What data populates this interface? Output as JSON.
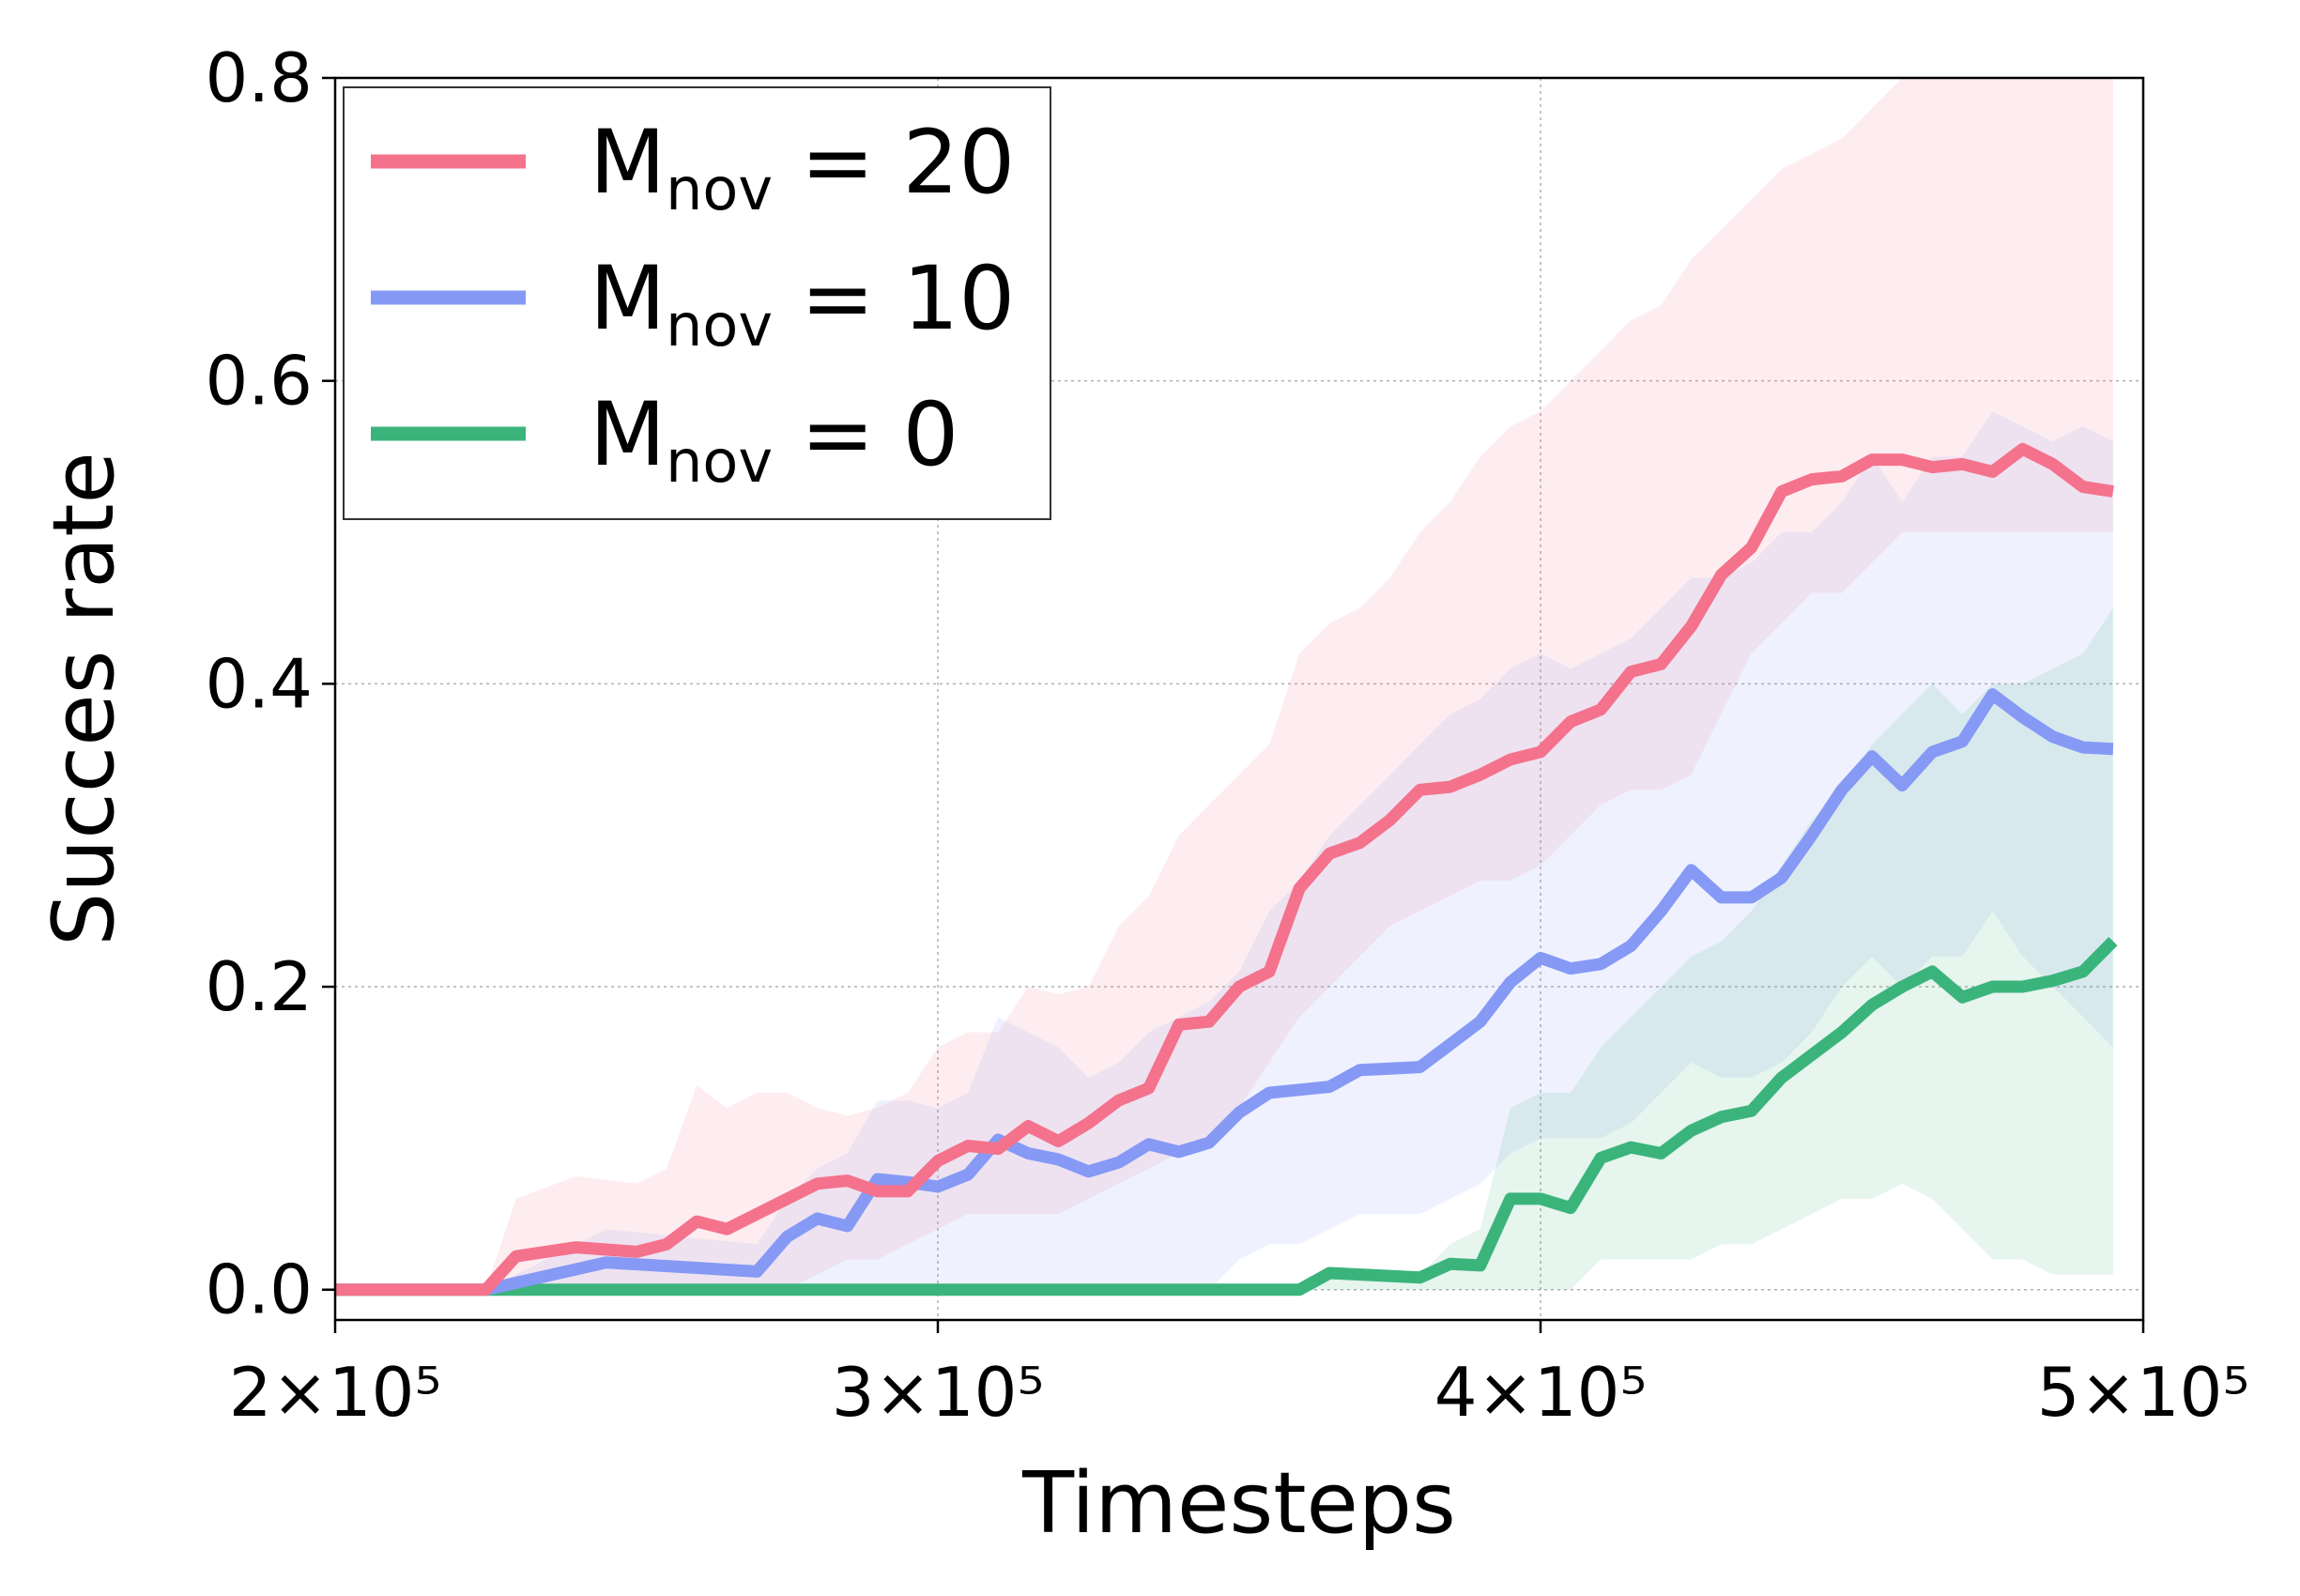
{
  "chart_data": {
    "type": "line",
    "title": "",
    "xlabel": "Timesteps",
    "ylabel": "Succes rate",
    "xlim": [
      200000,
      500000
    ],
    "ylim": [
      -0.02,
      0.8
    ],
    "x_ticks": [
      {
        "value": 200000,
        "label": "2×10⁵"
      },
      {
        "value": 300000,
        "label": "3×10⁵"
      },
      {
        "value": 400000,
        "label": "4×10⁵"
      },
      {
        "value": 500000,
        "label": "5×10⁵"
      }
    ],
    "y_ticks": [
      {
        "value": 0.0,
        "label": "0.0"
      },
      {
        "value": 0.2,
        "label": "0.2"
      },
      {
        "value": 0.4,
        "label": "0.4"
      },
      {
        "value": 0.6,
        "label": "0.6"
      },
      {
        "value": 0.8,
        "label": "0.8"
      }
    ],
    "grid": true,
    "legend_position": "top-left",
    "series": [
      {
        "name": "M_nov = 20",
        "legend_main": "M",
        "legend_sub": "nov",
        "legend_value": " = 20",
        "color": "#f4728c",
        "x": [
          200000,
          225000,
          230000,
          240000,
          250000,
          255000,
          260000,
          265000,
          270000,
          275000,
          280000,
          285000,
          290000,
          295000,
          300000,
          305000,
          310000,
          315000,
          320000,
          325000,
          330000,
          335000,
          340000,
          345000,
          350000,
          355000,
          360000,
          365000,
          370000,
          375000,
          380000,
          385000,
          390000,
          395000,
          400000,
          405000,
          410000,
          415000,
          420000,
          425000,
          430000,
          435000,
          440000,
          445000,
          450000,
          455000,
          460000,
          465000,
          470000,
          475000,
          480000,
          485000,
          490000,
          495000
        ],
        "y": [
          0.0,
          0.0,
          0.022,
          0.028,
          0.025,
          0.03,
          0.045,
          0.04,
          0.05,
          0.06,
          0.07,
          0.072,
          0.065,
          0.065,
          0.085,
          0.095,
          0.093,
          0.108,
          0.098,
          0.11,
          0.125,
          0.133,
          0.175,
          0.177,
          0.2,
          0.21,
          0.265,
          0.288,
          0.295,
          0.31,
          0.33,
          0.332,
          0.34,
          0.35,
          0.355,
          0.375,
          0.383,
          0.408,
          0.413,
          0.438,
          0.472,
          0.49,
          0.527,
          0.535,
          0.537,
          0.548,
          0.548,
          0.543,
          0.545,
          0.54,
          0.555,
          0.545,
          0.53,
          0.527
        ],
        "band_upper": [
          0.0,
          0.0,
          0.06,
          0.075,
          0.07,
          0.08,
          0.135,
          0.12,
          0.13,
          0.13,
          0.12,
          0.115,
          0.12,
          0.13,
          0.16,
          0.17,
          0.17,
          0.2,
          0.195,
          0.2,
          0.24,
          0.26,
          0.3,
          0.32,
          0.34,
          0.36,
          0.42,
          0.44,
          0.45,
          0.47,
          0.5,
          0.52,
          0.55,
          0.57,
          0.58,
          0.6,
          0.62,
          0.64,
          0.65,
          0.68,
          0.7,
          0.72,
          0.74,
          0.75,
          0.76,
          0.78,
          0.8,
          0.8,
          0.8,
          0.8,
          0.8,
          0.8,
          0.8,
          0.8
        ],
        "band_lower": [
          0.0,
          0.0,
          0.0,
          0.0,
          0.0,
          0.0,
          0.0,
          0.0,
          0.0,
          0.0,
          0.01,
          0.02,
          0.02,
          0.03,
          0.04,
          0.05,
          0.05,
          0.05,
          0.05,
          0.06,
          0.07,
          0.08,
          0.09,
          0.1,
          0.12,
          0.15,
          0.18,
          0.2,
          0.22,
          0.24,
          0.25,
          0.26,
          0.27,
          0.27,
          0.28,
          0.3,
          0.32,
          0.33,
          0.33,
          0.34,
          0.38,
          0.42,
          0.44,
          0.46,
          0.46,
          0.48,
          0.5,
          0.5,
          0.5,
          0.5,
          0.5,
          0.5,
          0.5,
          0.5
        ]
      },
      {
        "name": "M_nov = 10",
        "legend_main": "M",
        "legend_sub": "nov",
        "legend_value": " = 10",
        "color": "#8599f5",
        "x": [
          200000,
          225000,
          245000,
          270000,
          275000,
          280000,
          285000,
          290000,
          295000,
          300000,
          305000,
          310000,
          315000,
          320000,
          325000,
          330000,
          335000,
          340000,
          345000,
          350000,
          355000,
          360000,
          365000,
          370000,
          375000,
          380000,
          385000,
          390000,
          395000,
          400000,
          405000,
          410000,
          415000,
          420000,
          425000,
          430000,
          435000,
          440000,
          445000,
          450000,
          455000,
          460000,
          465000,
          470000,
          475000,
          480000,
          485000,
          490000,
          495000
        ],
        "y": [
          0.0,
          0.0,
          0.018,
          0.012,
          0.035,
          0.047,
          0.042,
          0.073,
          0.071,
          0.068,
          0.076,
          0.099,
          0.09,
          0.086,
          0.078,
          0.084,
          0.096,
          0.091,
          0.097,
          0.117,
          0.13,
          0.132,
          0.134,
          0.145,
          0.146,
          0.147,
          0.162,
          0.177,
          0.203,
          0.219,
          0.212,
          0.215,
          0.227,
          0.25,
          0.277,
          0.259,
          0.259,
          0.272,
          0.3,
          0.33,
          0.352,
          0.333,
          0.355,
          0.362,
          0.393,
          0.378,
          0.365,
          0.358,
          0.357
        ],
        "band_upper": [
          0.0,
          0.0,
          0.04,
          0.03,
          0.06,
          0.08,
          0.09,
          0.125,
          0.125,
          0.12,
          0.13,
          0.18,
          0.17,
          0.16,
          0.14,
          0.15,
          0.17,
          0.18,
          0.19,
          0.21,
          0.25,
          0.27,
          0.3,
          0.32,
          0.34,
          0.36,
          0.38,
          0.39,
          0.41,
          0.42,
          0.41,
          0.42,
          0.43,
          0.45,
          0.47,
          0.47,
          0.48,
          0.5,
          0.5,
          0.52,
          0.55,
          0.52,
          0.55,
          0.55,
          0.58,
          0.57,
          0.56,
          0.57,
          0.56
        ],
        "band_lower": [
          0.0,
          0.0,
          0.0,
          0.0,
          0.0,
          0.0,
          0.0,
          0.0,
          0.0,
          0.0,
          0.0,
          0.0,
          0.0,
          0.0,
          0.0,
          0.0,
          0.0,
          0.0,
          0.0,
          0.02,
          0.03,
          0.03,
          0.04,
          0.05,
          0.05,
          0.05,
          0.06,
          0.07,
          0.09,
          0.1,
          0.1,
          0.1,
          0.11,
          0.13,
          0.15,
          0.14,
          0.14,
          0.15,
          0.17,
          0.2,
          0.22,
          0.2,
          0.22,
          0.22,
          0.25,
          0.22,
          0.2,
          0.18,
          0.16
        ]
      },
      {
        "name": "M_nov = 0",
        "legend_main": "M",
        "legend_sub": "nov",
        "legend_value": " = 0",
        "color": "#3bb47c",
        "x": [
          200000,
          360000,
          365000,
          380000,
          385000,
          390000,
          395000,
          400000,
          405000,
          410000,
          415000,
          420000,
          425000,
          430000,
          435000,
          440000,
          445000,
          450000,
          455000,
          460000,
          465000,
          470000,
          475000,
          480000,
          485000,
          490000,
          495000
        ],
        "y": [
          0.0,
          0.0,
          0.011,
          0.008,
          0.017,
          0.016,
          0.06,
          0.06,
          0.054,
          0.087,
          0.094,
          0.09,
          0.105,
          0.114,
          0.118,
          0.14,
          0.155,
          0.17,
          0.188,
          0.2,
          0.21,
          0.193,
          0.2,
          0.2,
          0.204,
          0.21,
          0.23
        ],
        "band_upper": [
          0.0,
          0.0,
          0.01,
          0.01,
          0.03,
          0.04,
          0.12,
          0.13,
          0.13,
          0.16,
          0.18,
          0.2,
          0.22,
          0.23,
          0.25,
          0.28,
          0.31,
          0.33,
          0.36,
          0.38,
          0.4,
          0.38,
          0.4,
          0.4,
          0.41,
          0.42,
          0.45
        ],
        "band_lower": [
          0.0,
          0.0,
          0.0,
          0.0,
          0.0,
          0.0,
          0.0,
          0.0,
          0.0,
          0.02,
          0.02,
          0.02,
          0.02,
          0.03,
          0.03,
          0.04,
          0.05,
          0.06,
          0.06,
          0.07,
          0.06,
          0.04,
          0.02,
          0.02,
          0.01,
          0.01,
          0.01
        ]
      }
    ]
  }
}
